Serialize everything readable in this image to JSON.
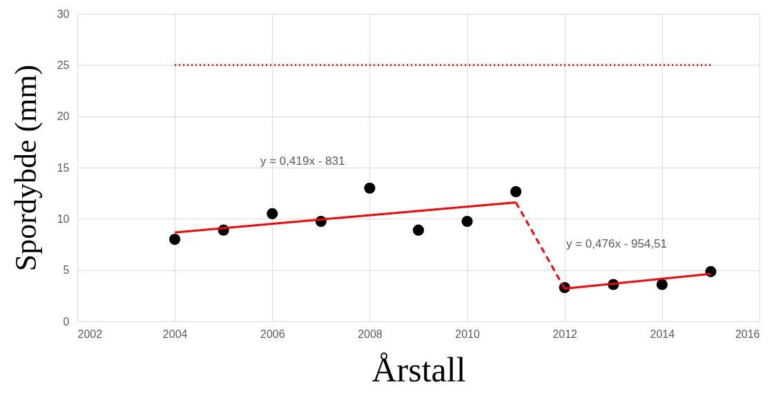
{
  "chart_data": {
    "type": "scatter",
    "xlabel": "Årstall",
    "ylabel": "Spordybde (mm)",
    "xlim": [
      2002,
      2016
    ],
    "xticks": [
      2002,
      2004,
      2006,
      2008,
      2010,
      2012,
      2014,
      2016
    ],
    "ylim": [
      0,
      30
    ],
    "yticks": [
      0,
      5,
      10,
      15,
      20,
      25,
      30
    ],
    "grid": true,
    "series": [
      {
        "type": "line",
        "color": "#ff0000",
        "line_style": "dotted",
        "x": [
          2004,
          2015
        ],
        "values": [
          25,
          25
        ]
      },
      {
        "type": "line",
        "color": "#ff0000",
        "line_style": "solid",
        "x": [
          2004,
          2011
        ],
        "values": [
          8.68,
          11.61
        ]
      },
      {
        "type": "line",
        "color": "#ff0000",
        "line_style": "dashed",
        "x": [
          2011,
          2012
        ],
        "values": [
          11.61,
          3.2
        ]
      },
      {
        "type": "line",
        "color": "#ff0000",
        "line_style": "solid",
        "x": [
          2012,
          2015
        ],
        "values": [
          3.2,
          4.63
        ]
      },
      {
        "color": "#000000",
        "marker": "circle",
        "x": [
          2004,
          2005,
          2006,
          2007,
          2008,
          2009,
          2010,
          2011,
          2012,
          2013,
          2014,
          2015
        ],
        "values": [
          8.0,
          8.9,
          10.5,
          9.75,
          13.0,
          8.9,
          9.75,
          12.65,
          3.3,
          3.6,
          3.6,
          4.85
        ]
      }
    ],
    "annotations": [
      "y = 0,419x - 831",
      "y = 0,476x - 954,51"
    ]
  }
}
